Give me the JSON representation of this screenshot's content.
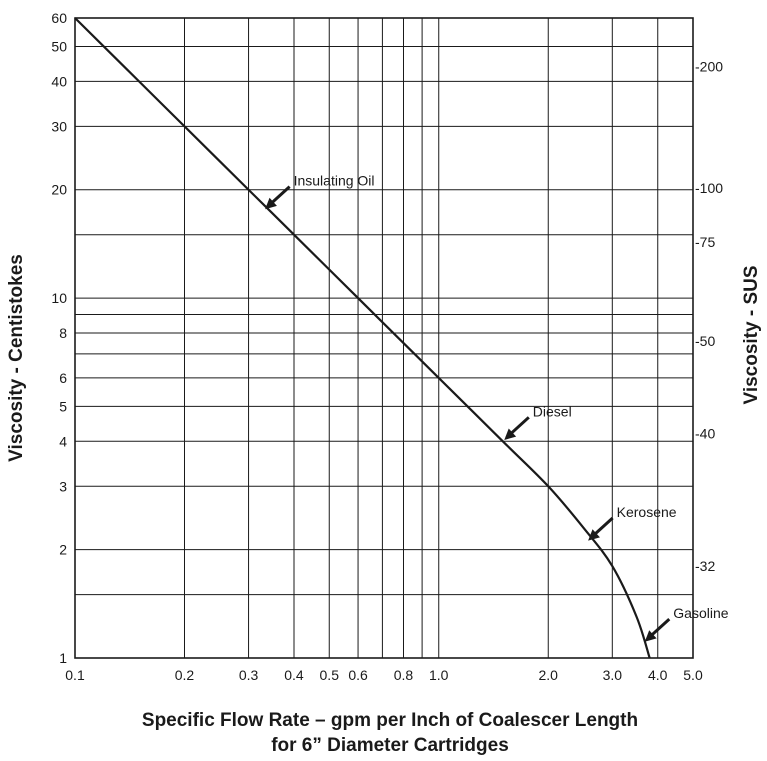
{
  "chart_data": {
    "type": "line",
    "x_scale": "log",
    "y_scale": "log",
    "xlim": [
      0.1,
      5.0
    ],
    "ylim": [
      1,
      60
    ],
    "grid": true,
    "xlabel": "Specific Flow Rate – gpm per Inch of Coalescer Length",
    "xlabel_line2": "for 6” Diameter Cartridges",
    "ylabel": "Viscosity  -  Centistokes",
    "y2label": "Viscosity  -  SUS",
    "x_ticks": [
      {
        "value": 0.1,
        "label": "0.1"
      },
      {
        "value": 0.2,
        "label": "0.2"
      },
      {
        "value": 0.3,
        "label": "0.3"
      },
      {
        "value": 0.4,
        "label": "0.4"
      },
      {
        "value": 0.5,
        "label": "0.5"
      },
      {
        "value": 0.6,
        "label": "0.6"
      },
      {
        "value": 0.8,
        "label": "0.8"
      },
      {
        "value": 1.0,
        "label": "1.0"
      },
      {
        "value": 2.0,
        "label": "2.0"
      },
      {
        "value": 3.0,
        "label": "3.0"
      },
      {
        "value": 4.0,
        "label": "4.0"
      },
      {
        "value": 5.0,
        "label": "5.0"
      }
    ],
    "x_gridlines": [
      0.1,
      0.2,
      0.3,
      0.4,
      0.5,
      0.6,
      0.7,
      0.8,
      0.9,
      1.0,
      2.0,
      3.0,
      4.0,
      5.0
    ],
    "y_ticks": [
      {
        "value": 1,
        "label": "1"
      },
      {
        "value": 2,
        "label": "2"
      },
      {
        "value": 3,
        "label": "3"
      },
      {
        "value": 4,
        "label": "4"
      },
      {
        "value": 5,
        "label": "5"
      },
      {
        "value": 6,
        "label": "6"
      },
      {
        "value": 8,
        "label": "8"
      },
      {
        "value": 10,
        "label": "10"
      },
      {
        "value": 20,
        "label": "20"
      },
      {
        "value": 30,
        "label": "30"
      },
      {
        "value": 40,
        "label": "40"
      },
      {
        "value": 50,
        "label": "50"
      },
      {
        "value": 60,
        "label": "60"
      }
    ],
    "y_gridlines": [
      1.5,
      2,
      3,
      4,
      5,
      6,
      7,
      8,
      9,
      10,
      15,
      20,
      30,
      40,
      50,
      60
    ],
    "y2_ticks": [
      {
        "cst": 44,
        "label": "-200"
      },
      {
        "cst": 20.2,
        "label": "-100"
      },
      {
        "cst": 14.3,
        "label": "-75"
      },
      {
        "cst": 7.6,
        "label": "-50"
      },
      {
        "cst": 4.2,
        "label": "-40"
      },
      {
        "cst": 1.8,
        "label": "-32"
      }
    ],
    "series": [
      {
        "points": [
          {
            "x": 0.1,
            "y": 60
          },
          {
            "x": 0.15,
            "y": 40
          },
          {
            "x": 0.2,
            "y": 30
          },
          {
            "x": 0.3,
            "y": 20
          },
          {
            "x": 0.4,
            "y": 15
          },
          {
            "x": 0.6,
            "y": 10
          },
          {
            "x": 0.8,
            "y": 7.5
          },
          {
            "x": 1.0,
            "y": 6
          },
          {
            "x": 1.5,
            "y": 4
          },
          {
            "x": 2.0,
            "y": 3
          },
          {
            "x": 2.5,
            "y": 2.3
          },
          {
            "x": 3.0,
            "y": 1.8
          },
          {
            "x": 3.5,
            "y": 1.3
          },
          {
            "x": 3.8,
            "y": 1.0
          }
        ]
      }
    ],
    "annotations": [
      {
        "label": "Insulating Oil",
        "x": 0.33,
        "y": 17.5
      },
      {
        "label": "Diesel",
        "x": 1.5,
        "y": 4
      },
      {
        "label": "Kerosene",
        "x": 2.55,
        "y": 2.1
      },
      {
        "label": "Gasoline",
        "x": 3.65,
        "y": 1.1
      }
    ]
  }
}
